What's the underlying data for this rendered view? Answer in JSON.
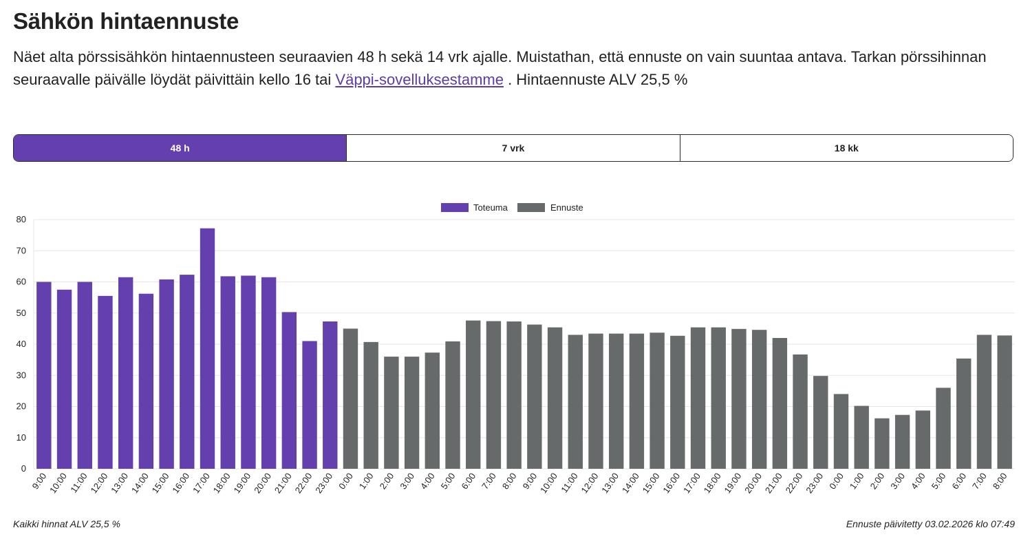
{
  "page": {
    "title": "Sähkön hintaennuste",
    "intro_before": "Näet alta pörssisähkön hintaennusteen seuraavien 48 h sekä 14 vrk ajalle. Muistathan, että ennuste on vain suuntaa antava. Tarkan pörssihinnan seuraavalle päivälle löydät päivittäin kello 16 tai ",
    "intro_link": "Väppi-sovelluksestamme",
    "intro_after": " . Hintaennuste ALV 25,5 %"
  },
  "tabs": [
    {
      "label": "48 h",
      "active": true
    },
    {
      "label": "7 vrk",
      "active": false
    },
    {
      "label": "18 kk",
      "active": false
    }
  ],
  "colors": {
    "toteuma": "#6340ad",
    "ennuste": "#676a6a",
    "grid": "#e6e6e6"
  },
  "chart_data": {
    "type": "bar",
    "ylim": [
      0,
      80
    ],
    "yticks": [
      0,
      10,
      20,
      30,
      40,
      50,
      60,
      70,
      80
    ],
    "legend_position": "top-center",
    "categories": [
      "9:00",
      "10:00",
      "11:00",
      "12:00",
      "13:00",
      "14:00",
      "15:00",
      "16:00",
      "17:00",
      "18:00",
      "19:00",
      "20:00",
      "21:00",
      "22:00",
      "23:00",
      "0:00",
      "1:00",
      "2:00",
      "3:00",
      "4:00",
      "5:00",
      "6:00",
      "7:00",
      "8:00",
      "9:00",
      "10:00",
      "11:00",
      "12:00",
      "13:00",
      "14:00",
      "15:00",
      "16:00",
      "17:00",
      "18:00",
      "19:00",
      "20:00",
      "21:00",
      "22:00",
      "23:00",
      "0:00",
      "1:00",
      "2:00",
      "3:00",
      "4:00",
      "5:00",
      "6:00",
      "7:00",
      "8:00"
    ],
    "series": [
      {
        "name": "Toteuma",
        "values": [
          60.0,
          57.5,
          60.0,
          55.5,
          61.5,
          56.2,
          60.8,
          62.3,
          77.2,
          61.8,
          62.0,
          61.5,
          50.3,
          41.0,
          47.3,
          null,
          null,
          null,
          null,
          null,
          null,
          null,
          null,
          null,
          null,
          null,
          null,
          null,
          null,
          null,
          null,
          null,
          null,
          null,
          null,
          null,
          null,
          null,
          null,
          null,
          null,
          null,
          null,
          null,
          null,
          null,
          null,
          null
        ]
      },
      {
        "name": "Ennuste",
        "values": [
          null,
          null,
          null,
          null,
          null,
          null,
          null,
          null,
          null,
          null,
          null,
          null,
          null,
          null,
          null,
          45.0,
          40.7,
          36.0,
          36.0,
          37.3,
          40.9,
          47.6,
          47.4,
          47.3,
          46.3,
          45.4,
          43.0,
          43.4,
          43.4,
          43.4,
          43.7,
          42.7,
          45.4,
          45.4,
          44.9,
          44.6,
          42.0,
          36.7,
          29.8,
          24.0,
          20.2,
          16.2,
          17.3,
          18.7,
          26.0,
          35.4,
          43.0,
          42.8
        ]
      }
    ]
  },
  "footer": {
    "vat_note": "Kaikki hinnat ALV 25,5 %",
    "updated": "Ennuste päivitetty 03.02.2026 klo 07:49"
  }
}
